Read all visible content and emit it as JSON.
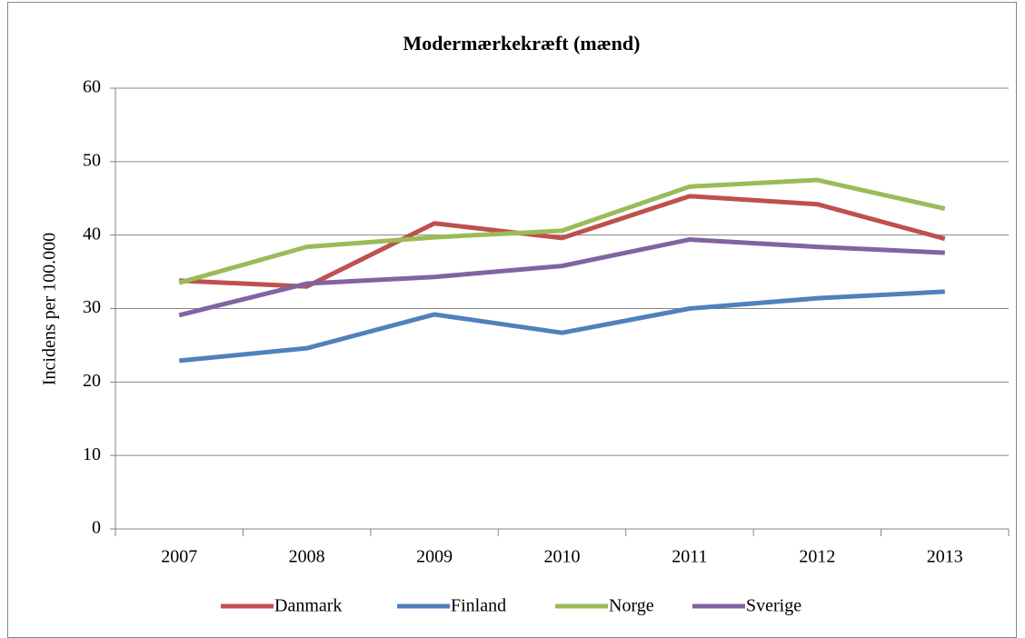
{
  "chart_data": {
    "type": "line",
    "title": "Modermærkekræft (mænd)",
    "y_label": "Incidens per 100.000",
    "categories": [
      "2007",
      "2008",
      "2009",
      "2010",
      "2011",
      "2012",
      "2013"
    ],
    "series": [
      {
        "name": "Danmark",
        "color": "#c0504d",
        "values": [
          33.8,
          33.0,
          41.6,
          39.6,
          45.3,
          44.2,
          39.5
        ]
      },
      {
        "name": "Finland",
        "color": "#4f81bd",
        "values": [
          22.9,
          24.6,
          29.2,
          26.7,
          30.0,
          31.4,
          32.3
        ]
      },
      {
        "name": "Norge",
        "color": "#9bbb59",
        "values": [
          33.5,
          38.4,
          39.7,
          40.6,
          46.6,
          47.5,
          43.6
        ]
      },
      {
        "name": "Sverige",
        "color": "#8064a2",
        "values": [
          29.1,
          33.4,
          34.3,
          35.8,
          39.4,
          38.4,
          37.6
        ]
      }
    ],
    "ylim": [
      0,
      60
    ],
    "yticks": [
      0,
      10,
      20,
      30,
      40,
      50,
      60
    ],
    "grid": true,
    "legend": "bottom"
  }
}
